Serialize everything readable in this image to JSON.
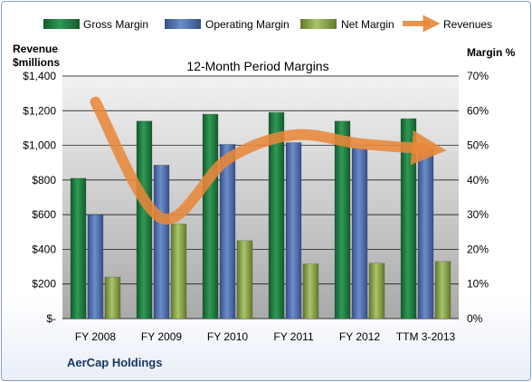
{
  "chart_data": {
    "type": "bar",
    "title": "12-Month Period Margins",
    "company": "AerCap Holdings",
    "categories": [
      "FY 2008",
      "FY 2009",
      "FY 2010",
      "FY 2011",
      "FY 2012",
      "TTM 3-2013"
    ],
    "series": [
      {
        "name": "Gross Margin",
        "type": "bar",
        "axis": "right",
        "color": "#1f7a3e",
        "values": [
          40.5,
          57.0,
          59.0,
          59.5,
          57.0,
          57.7
        ]
      },
      {
        "name": "Operating Margin",
        "type": "bar",
        "axis": "right",
        "color": "#4f6fae",
        "values": [
          30.0,
          44.3,
          50.3,
          50.8,
          49.2,
          49.0
        ]
      },
      {
        "name": "Net Margin",
        "type": "bar",
        "axis": "right",
        "color": "#8fae4a",
        "values": [
          12.0,
          27.3,
          22.5,
          15.8,
          16.0,
          16.5
        ]
      },
      {
        "name": "Revenues",
        "type": "line",
        "axis": "left",
        "color": "#e8873a",
        "values": [
          1250,
          580,
          920,
          1060,
          1010,
          980
        ]
      }
    ],
    "y_left": {
      "label_line1": "Revenue",
      "label_line2": "$millions",
      "range": [
        0,
        1400
      ],
      "ticks": [
        "$-",
        "$200",
        "$400",
        "$600",
        "$800",
        "$1,000",
        "$1,200",
        "$1,400"
      ]
    },
    "y_right": {
      "label": "Margin %",
      "range": [
        0,
        70
      ],
      "ticks": [
        "0%",
        "10%",
        "20%",
        "30%",
        "40%",
        "50%",
        "60%",
        "70%"
      ]
    },
    "grid": true,
    "legend_position": "top"
  }
}
